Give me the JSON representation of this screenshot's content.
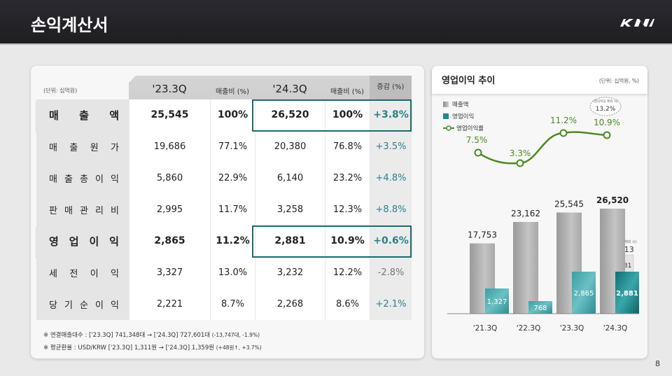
{
  "header": {
    "title": "손익계산서",
    "logo": "KIA"
  },
  "table": {
    "unit": "(단위: 십억원)",
    "columns": [
      "'23.3Q",
      "매출비 (%)",
      "'24.3Q",
      "매출비 (%)",
      "증감 (%)"
    ],
    "rows": [
      {
        "label": [
          "매",
          "출",
          "액"
        ],
        "v23": "25,545",
        "p23": "100%",
        "v24": "26,520",
        "p24": "100%",
        "chg": "+3.8%",
        "bold": true
      },
      {
        "label": [
          "매",
          "출",
          "원",
          "가"
        ],
        "v23": "19,686",
        "p23": "77.1%",
        "v24": "20,380",
        "p24": "76.8%",
        "chg": "+3.5%"
      },
      {
        "label": [
          "매",
          "출",
          "총",
          "이",
          "익"
        ],
        "v23": "5,860",
        "p23": "22.9%",
        "v24": "6,140",
        "p24": "23.2%",
        "chg": "+4.8%"
      },
      {
        "label": [
          "판",
          "매",
          "관",
          "리",
          "비"
        ],
        "v23": "2,995",
        "p23": "11.7%",
        "v24": "3,258",
        "p24": "12.3%",
        "chg": "+8.8%"
      },
      {
        "label": [
          "영",
          "업",
          "이",
          "익"
        ],
        "v23": "2,865",
        "p23": "11.2%",
        "v24": "2,881",
        "p24": "10.9%",
        "chg": "+0.6%",
        "bold": true
      },
      {
        "label": [
          "세",
          "전",
          "이",
          "익"
        ],
        "v23": "3,327",
        "p23": "13.0%",
        "v24": "3,232",
        "p24": "12.2%",
        "chg": "-2.8%"
      },
      {
        "label": [
          "당",
          "기",
          "순",
          "이",
          "익"
        ],
        "v23": "2,221",
        "p23": "8.7%",
        "v24": "2,268",
        "p24": "8.6%",
        "chg": "+2.1%"
      }
    ],
    "notes": [
      {
        "main": "※  연결매출대수 : ['23.3Q] 741,348대  →  ['24.3Q] 727,601대 ",
        "small": "(-13,747대, -1.9%)"
      },
      {
        "main": "※  평균환율 : USD/KRW ['23.3Q] 1,311원  →  ['24.3Q] 1,359원 ",
        "small": "(+48원↑, +3.7%)"
      }
    ]
  },
  "chart_panel": {
    "title": "영업이익 추이",
    "unit": "(단위: 십억원, %)",
    "legend": [
      "매출액",
      "영업이익",
      "영업이익률"
    ],
    "callout_margin": {
      "note": "(충당비용 제외 시)",
      "value": "13.2%"
    },
    "callout_op": {
      "note": "(충당비용 제외 시)",
      "value": "3,513",
      "delta": "+631"
    }
  },
  "chart_data": {
    "type": "bar",
    "title": "영업이익 추이",
    "categories": [
      "'21.3Q",
      "'22.3Q",
      "'23.3Q",
      "'24.3Q"
    ],
    "series": [
      {
        "name": "매출액",
        "type": "bar",
        "values": [
          17753,
          23162,
          25545,
          26520
        ],
        "labels": [
          "17,753",
          "23,162",
          "25,545",
          "26,520"
        ]
      },
      {
        "name": "영업이익",
        "type": "bar",
        "values": [
          1327,
          768,
          2865,
          2881
        ],
        "labels": [
          "1,327",
          "768",
          "2,865",
          "2,881"
        ]
      },
      {
        "name": "영업이익률",
        "type": "line",
        "values": [
          7.5,
          3.3,
          11.2,
          10.9
        ],
        "labels": [
          "7.5%",
          "3.3%",
          "11.2%",
          "10.9%"
        ]
      }
    ],
    "annotations": [
      {
        "text": "(충당비용 제외 시) 13.2%",
        "target": "영업이익률 '24.3Q"
      },
      {
        "text": "(충당비용 제외 시) 3,513 (+631)",
        "target": "영업이익 '24.3Q"
      }
    ],
    "unit": "(단위: 십억원, %)",
    "colors": {
      "revenue": "#a9a9a9",
      "op_income": "#2b9a9e",
      "op_income_latest": "#1a7d83",
      "margin_line": "#4a8a1e"
    }
  },
  "page_number": "8"
}
